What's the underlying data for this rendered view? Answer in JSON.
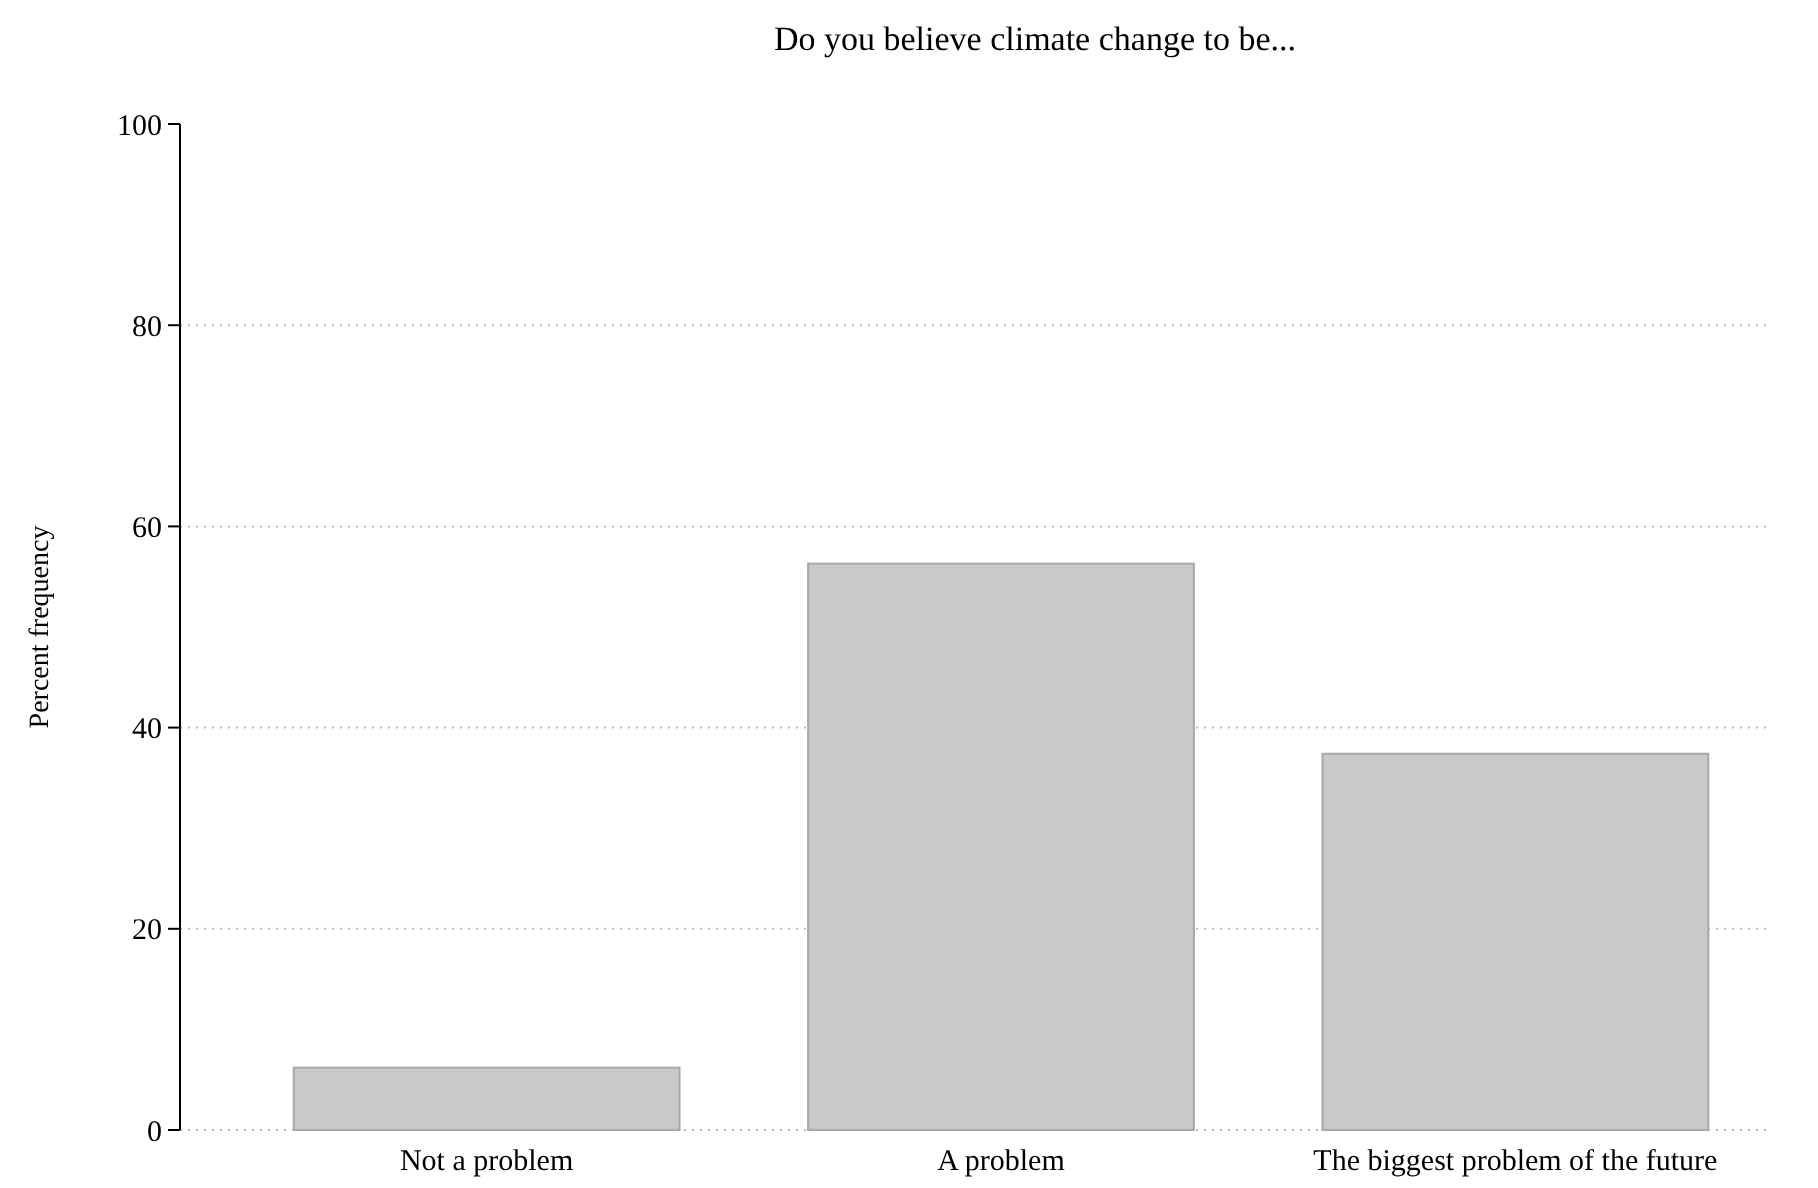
{
  "chart_data": {
    "type": "bar",
    "title": "Do you believe climate change to be...",
    "ylabel": "Percent frequency",
    "categories": [
      "Not a problem",
      "A problem",
      "The biggest problem of the future"
    ],
    "values": [
      6.2,
      56.3,
      37.4
    ],
    "color": "#c8c9c8",
    "ylim": [
      0,
      100
    ],
    "yticks": [
      0,
      20,
      40,
      60,
      80,
      100
    ],
    "grid": "y"
  }
}
